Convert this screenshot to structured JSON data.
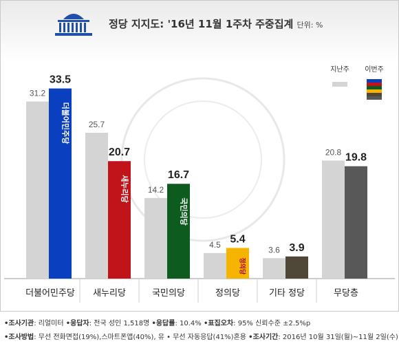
{
  "header": {
    "title": "정당 지지도: '16년 11월 1주차 주중집계",
    "unit": "단위: %"
  },
  "legend": {
    "previous": "지난주",
    "current": "이번주"
  },
  "colors": {
    "previous": "#d4d4d4",
    "minjoo": "#0a3fbf",
    "saenuri": "#c0141a",
    "gukmin": "#0d5b1e",
    "justice": "#f5b400",
    "other": "#4f4738",
    "independent": "#585858"
  },
  "chart_data": {
    "type": "bar",
    "categories": [
      "더불어민주당",
      "새누리당",
      "국민의당",
      "정의당",
      "기타 정당",
      "무당층"
    ],
    "series": [
      {
        "name": "지난주",
        "values": [
          31.2,
          25.7,
          14.2,
          4.5,
          3.6,
          20.8
        ]
      },
      {
        "name": "이번주",
        "values": [
          33.5,
          20.7,
          16.7,
          5.4,
          3.9,
          19.8
        ]
      }
    ],
    "logo_labels": [
      "더불어민주당",
      "새누리당",
      "국민의당",
      "정의당",
      "",
      ""
    ],
    "ylim": [
      0,
      36
    ],
    "grid": false,
    "legend_position": "top-right",
    "xlabel": "",
    "ylabel": ""
  },
  "footer": {
    "line1": [
      {
        "key": "•조사기관",
        "val": ": 리얼미터 "
      },
      {
        "key": "•응답자",
        "val": ": 전국 성인 1,518명 "
      },
      {
        "key": "•응답률",
        "val": ": 10.4% "
      },
      {
        "key": "•표집오차",
        "val": ": 95% 신뢰수준 ±2.5%p"
      }
    ],
    "line2": [
      {
        "key": "•조사방법",
        "val": ": 무선 전화면접(19%),스마트폰앱(40%), 유 • 무선 자동응답(41%)혼용 "
      },
      {
        "key": "•조사기간",
        "val": ": 2016년 10월 31일(월)~11월 2일(수)"
      }
    ]
  }
}
